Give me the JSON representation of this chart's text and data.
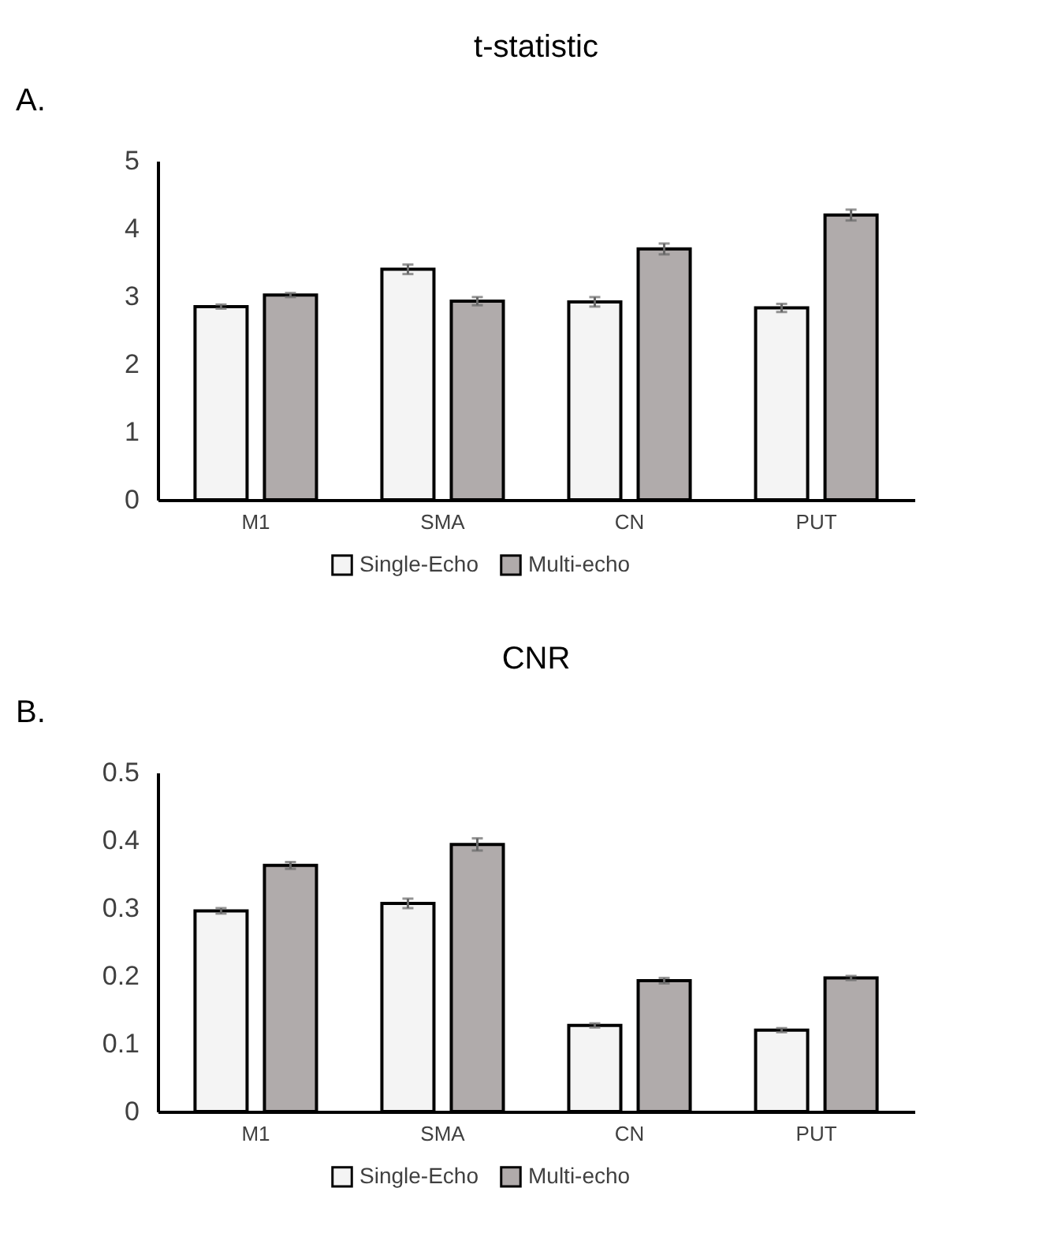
{
  "chart_data": [
    {
      "type": "bar",
      "title": "t-statistic",
      "annotations": [
        "A."
      ],
      "categories": [
        "M1",
        "SMA",
        "CN",
        "PUT"
      ],
      "series": [
        {
          "name": "Single-Echo",
          "color": "#f4f4f4",
          "values": [
            2.85,
            3.4,
            2.92,
            2.83
          ],
          "errors": [
            0.03,
            0.07,
            0.07,
            0.06
          ]
        },
        {
          "name": "Multi-echo",
          "color": "#b0abab",
          "values": [
            3.02,
            2.93,
            3.7,
            4.2
          ],
          "errors": [
            0.03,
            0.06,
            0.08,
            0.08
          ]
        }
      ],
      "ylim": [
        0,
        5
      ],
      "yticks": [
        0,
        1,
        2,
        3,
        4,
        5
      ],
      "grid": false,
      "legend": "bottom"
    },
    {
      "type": "bar",
      "title": "CNR",
      "annotations": [
        "B."
      ],
      "categories": [
        "M1",
        "SMA",
        "CN",
        "PUT"
      ],
      "series": [
        {
          "name": "Single-Echo",
          "color": "#f4f4f4",
          "values": [
            0.296,
            0.307,
            0.127,
            0.12
          ],
          "errors": [
            0.004,
            0.007,
            0.003,
            0.003
          ]
        },
        {
          "name": "Multi-echo",
          "color": "#b0abab",
          "values": [
            0.363,
            0.394,
            0.193,
            0.197
          ],
          "errors": [
            0.005,
            0.009,
            0.004,
            0.003
          ]
        }
      ],
      "ylim": [
        0,
        0.5
      ],
      "yticks": [
        0,
        0.1,
        0.2,
        0.3,
        0.4,
        0.5
      ],
      "grid": false,
      "legend": "bottom"
    }
  ]
}
